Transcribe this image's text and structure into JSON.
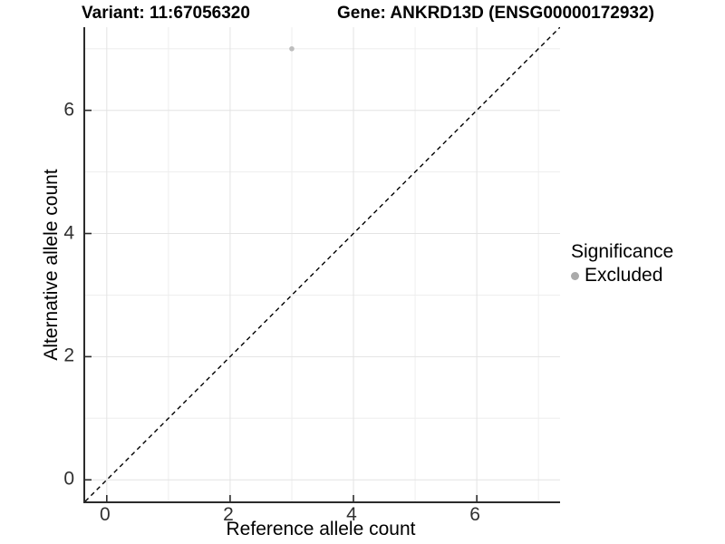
{
  "titles": {
    "variant": "Variant: 11:67056320",
    "gene": "Gene: ANKRD13D (ENSG00000172932)"
  },
  "axes": {
    "x_label": "Reference allele count",
    "y_label": "Alternative allele count"
  },
  "legend": {
    "title": "Significance",
    "items": [
      {
        "label": "Excluded",
        "color": "#aaaaaa"
      }
    ]
  },
  "colors": {
    "grid_major": "#e3e3e3",
    "grid_minor": "#eeeeee",
    "axis_line": "#2b2b2b",
    "tick_mark": "#2b2b2b",
    "tick_text": "#303030",
    "point": "#bdbdbd",
    "reference_line": "#000000"
  },
  "chart_data": {
    "type": "scatter",
    "title": "Variant: 11:67056320 / Gene: ANKRD13D (ENSG00000172932)",
    "xlabel": "Reference allele count",
    "ylabel": "Alternative allele count",
    "xlim": [
      -0.35,
      7.35
    ],
    "ylim": [
      -0.35,
      7.35
    ],
    "x_ticks": [
      0,
      2,
      4,
      6
    ],
    "y_ticks": [
      0,
      2,
      4,
      6
    ],
    "x_minor_ticks": [
      1,
      3,
      5,
      7
    ],
    "y_minor_ticks": [
      1,
      3,
      5,
      7
    ],
    "grid": true,
    "legend_position": "right",
    "reference_line": {
      "type": "identity",
      "style": "dashed",
      "slope": 1,
      "intercept": 0
    },
    "series": [
      {
        "name": "Excluded",
        "color": "#bdbdbd",
        "points": [
          {
            "x": 3,
            "y": 7
          }
        ]
      }
    ]
  }
}
